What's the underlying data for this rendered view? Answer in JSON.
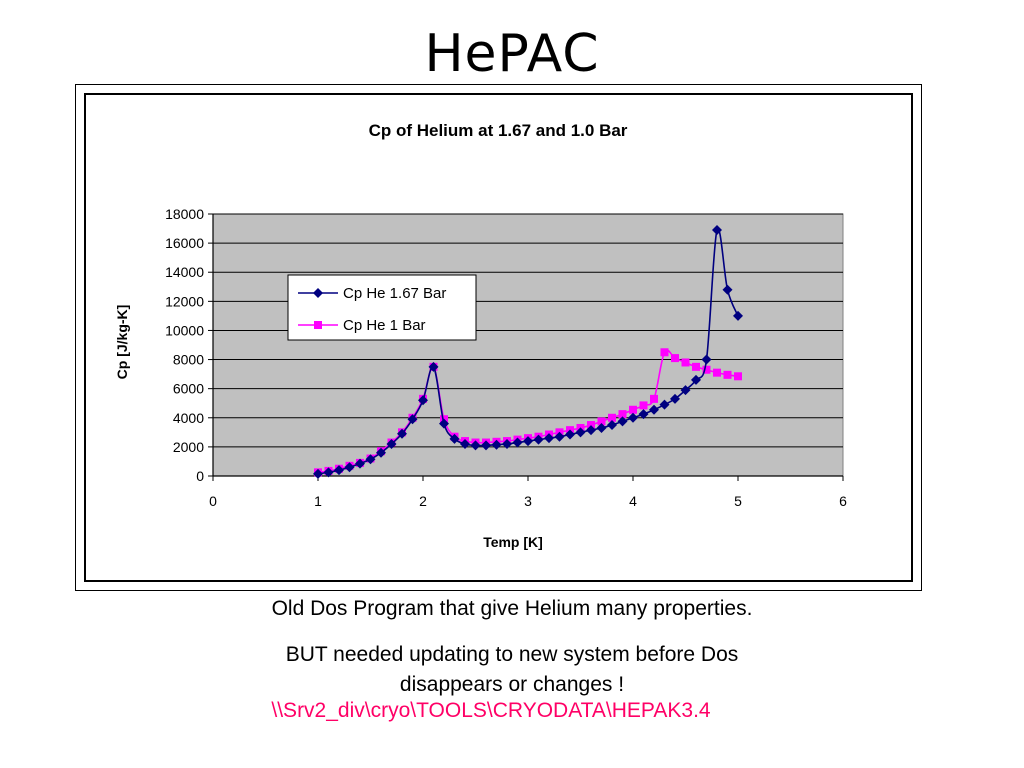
{
  "slide": {
    "title": "HePAC",
    "caption_line1": "Old Dos Program that give Helium many properties.",
    "caption_line2": "BUT needed updating to new system before Dos",
    "caption_line3": "disappears or changes !",
    "path_link": "\\\\Srv2_div\\cryo\\TOOLS\\CRYODATA\\HEPAK3.4"
  },
  "chart_data": {
    "type": "line",
    "title": "Cp of Helium at 1.67 and 1.0 Bar",
    "xlabel": "Temp [K]",
    "ylabel": "Cp [J/kg-K]",
    "xlim": [
      0,
      6
    ],
    "ylim": [
      0,
      18000
    ],
    "x_ticks": [
      "0",
      "1",
      "2",
      "3",
      "4",
      "5",
      "6"
    ],
    "y_ticks": [
      "0",
      "2000",
      "4000",
      "6000",
      "8000",
      "10000",
      "12000",
      "14000",
      "16000",
      "18000"
    ],
    "grid": "horizontal",
    "plot_background": "#c0c0c0",
    "legend_position": "center-upper",
    "series": [
      {
        "name": "Cp He 1.67 Bar",
        "color": "#000080",
        "marker": "diamond",
        "points": [
          [
            1.0,
            150
          ],
          [
            1.1,
            250
          ],
          [
            1.2,
            400
          ],
          [
            1.3,
            600
          ],
          [
            1.4,
            850
          ],
          [
            1.5,
            1150
          ],
          [
            1.6,
            1600
          ],
          [
            1.7,
            2200
          ],
          [
            1.8,
            2900
          ],
          [
            1.9,
            3900
          ],
          [
            2.0,
            5200
          ],
          [
            2.1,
            7500
          ],
          [
            2.2,
            3600
          ],
          [
            2.3,
            2550
          ],
          [
            2.4,
            2200
          ],
          [
            2.5,
            2100
          ],
          [
            2.6,
            2100
          ],
          [
            2.7,
            2150
          ],
          [
            2.8,
            2200
          ],
          [
            2.9,
            2300
          ],
          [
            3.0,
            2400
          ],
          [
            3.1,
            2500
          ],
          [
            3.2,
            2600
          ],
          [
            3.3,
            2700
          ],
          [
            3.4,
            2850
          ],
          [
            3.5,
            3000
          ],
          [
            3.6,
            3150
          ],
          [
            3.7,
            3300
          ],
          [
            3.8,
            3500
          ],
          [
            3.9,
            3750
          ],
          [
            4.0,
            4000
          ],
          [
            4.1,
            4250
          ],
          [
            4.2,
            4550
          ],
          [
            4.3,
            4900
          ],
          [
            4.4,
            5300
          ],
          [
            4.5,
            5900
          ],
          [
            4.6,
            6600
          ],
          [
            4.7,
            8000
          ],
          [
            4.8,
            16900
          ],
          [
            4.9,
            12800
          ],
          [
            5.0,
            11000
          ]
        ]
      },
      {
        "name": "Cp He 1 Bar",
        "color": "#ff00ff",
        "marker": "square",
        "points": [
          [
            1.0,
            250
          ],
          [
            1.1,
            350
          ],
          [
            1.2,
            500
          ],
          [
            1.3,
            700
          ],
          [
            1.4,
            900
          ],
          [
            1.5,
            1200
          ],
          [
            1.6,
            1700
          ],
          [
            1.7,
            2300
          ],
          [
            1.8,
            3000
          ],
          [
            1.9,
            4000
          ],
          [
            2.0,
            5300
          ],
          [
            2.1,
            7500
          ],
          [
            2.2,
            3900
          ],
          [
            2.3,
            2700
          ],
          [
            2.4,
            2400
          ],
          [
            2.5,
            2300
          ],
          [
            2.6,
            2300
          ],
          [
            2.7,
            2350
          ],
          [
            2.8,
            2400
          ],
          [
            2.9,
            2500
          ],
          [
            3.0,
            2600
          ],
          [
            3.1,
            2700
          ],
          [
            3.2,
            2850
          ],
          [
            3.3,
            3000
          ],
          [
            3.4,
            3150
          ],
          [
            3.5,
            3300
          ],
          [
            3.6,
            3500
          ],
          [
            3.7,
            3750
          ],
          [
            3.8,
            4000
          ],
          [
            3.9,
            4250
          ],
          [
            4.0,
            4550
          ],
          [
            4.1,
            4850
          ],
          [
            4.2,
            5300
          ],
          [
            4.3,
            8500
          ],
          [
            4.4,
            8100
          ],
          [
            4.5,
            7800
          ],
          [
            4.6,
            7500
          ],
          [
            4.7,
            7300
          ],
          [
            4.8,
            7100
          ],
          [
            4.9,
            6950
          ],
          [
            5.0,
            6850
          ]
        ]
      }
    ]
  }
}
